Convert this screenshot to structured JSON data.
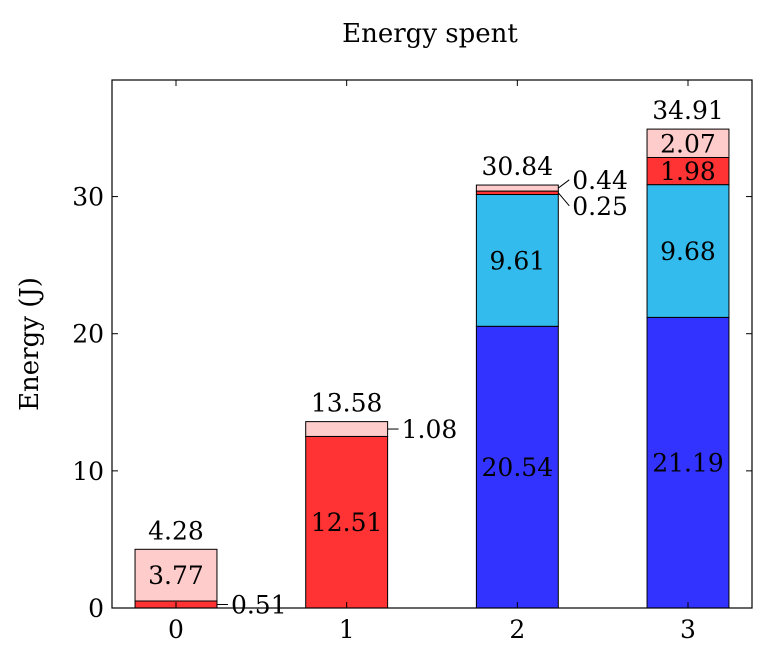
{
  "chart_data": {
    "type": "bar",
    "stacked": true,
    "title": "Energy spent",
    "xlabel": "",
    "ylabel": "Energy (J)",
    "categories": [
      "0",
      "1",
      "2",
      "3"
    ],
    "ylim": [
      0,
      38.5
    ],
    "xlim": [
      -0.375,
      3.375
    ],
    "yticks": [
      0,
      10,
      20,
      30
    ],
    "grid": false,
    "series": [
      {
        "color": "#3333ff",
        "values": [
          0,
          0,
          20.54,
          21.19
        ],
        "labels": [
          "",
          "",
          "20.54",
          "21.19"
        ]
      },
      {
        "color": "#33bbee",
        "values": [
          0,
          0,
          9.61,
          9.68
        ],
        "labels": [
          "",
          "",
          "9.61",
          "9.68"
        ]
      },
      {
        "color": "#ff3333",
        "values": [
          0.51,
          12.51,
          0.25,
          1.98
        ],
        "labels": [
          "0.51",
          "12.51",
          "0.25",
          "1.98"
        ]
      },
      {
        "color": "#ffcccc",
        "values": [
          3.77,
          1.08,
          0.44,
          2.07
        ],
        "labels": [
          "3.77",
          "1.08",
          "0.44",
          "2.07"
        ]
      }
    ],
    "totals": [
      "4.28",
      "13.58",
      "30.84",
      "34.91"
    ]
  }
}
